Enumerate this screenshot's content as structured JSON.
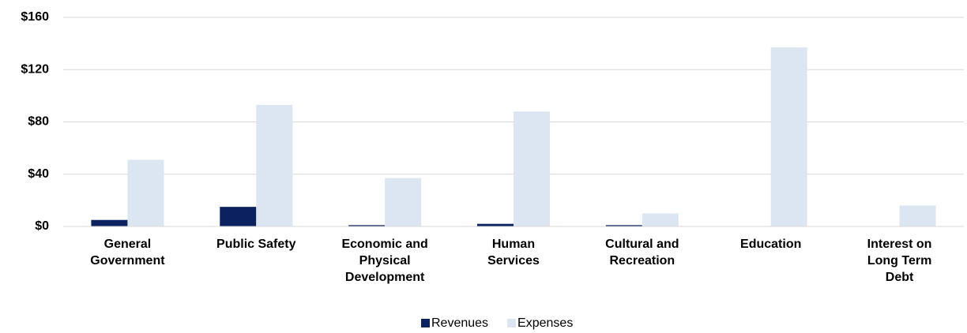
{
  "chart_data": {
    "type": "bar",
    "categories": [
      "General Government",
      "Public Safety",
      "Economic and Physical Development",
      "Human Services",
      "Cultural and Recreation",
      "Education",
      "Interest on Long Term Debt"
    ],
    "series": [
      {
        "name": "Revenues",
        "color": "#0b2160",
        "values": [
          5,
          15,
          1,
          2,
          1,
          0,
          0
        ]
      },
      {
        "name": "Expenses",
        "color": "#dce6f2",
        "values": [
          51,
          93,
          37,
          88,
          10,
          137,
          16
        ]
      }
    ],
    "ylim": [
      0,
      160
    ],
    "yticks": [
      {
        "value": 0,
        "label": "$0"
      },
      {
        "value": 40,
        "label": "$40"
      },
      {
        "value": 80,
        "label": "$80"
      },
      {
        "value": 120,
        "label": "$120"
      },
      {
        "value": 160,
        "label": "$160"
      }
    ],
    "grid": true,
    "legend": "bottom"
  }
}
